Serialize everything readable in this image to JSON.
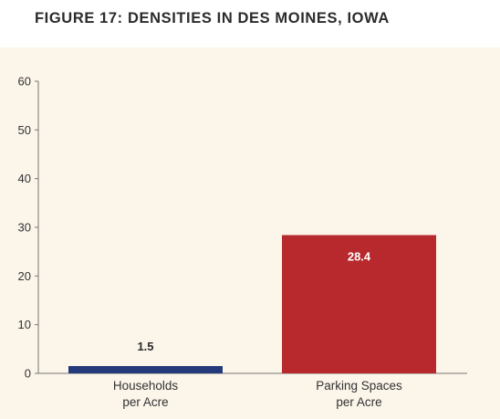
{
  "title": "FIGURE 17: DENSITIES IN DES MOINES, IOWA",
  "colors": {
    "background_panel": "#fbf5ea",
    "households_bar": "#253a7a",
    "parking_bar": "#b8292d",
    "axis": "#777777",
    "label_dark": "#2b2b2b",
    "label_light": "#ffffff"
  },
  "chart_data": {
    "type": "bar",
    "title": "FIGURE 17: DENSITIES IN DES MOINES, IOWA",
    "xlabel": "",
    "ylabel": "",
    "ylim": [
      0,
      60
    ],
    "yticks": [
      "0",
      "10",
      "20",
      "30",
      "40",
      "50",
      "60"
    ],
    "grid": false,
    "legend": "none",
    "categories": [
      {
        "lines": [
          "Households",
          "per Acre"
        ]
      },
      {
        "lines": [
          "Parking Spaces",
          "per Acre"
        ]
      }
    ],
    "values": [
      1.5,
      28.4
    ],
    "data_labels": [
      "1.5",
      "28.4"
    ]
  }
}
